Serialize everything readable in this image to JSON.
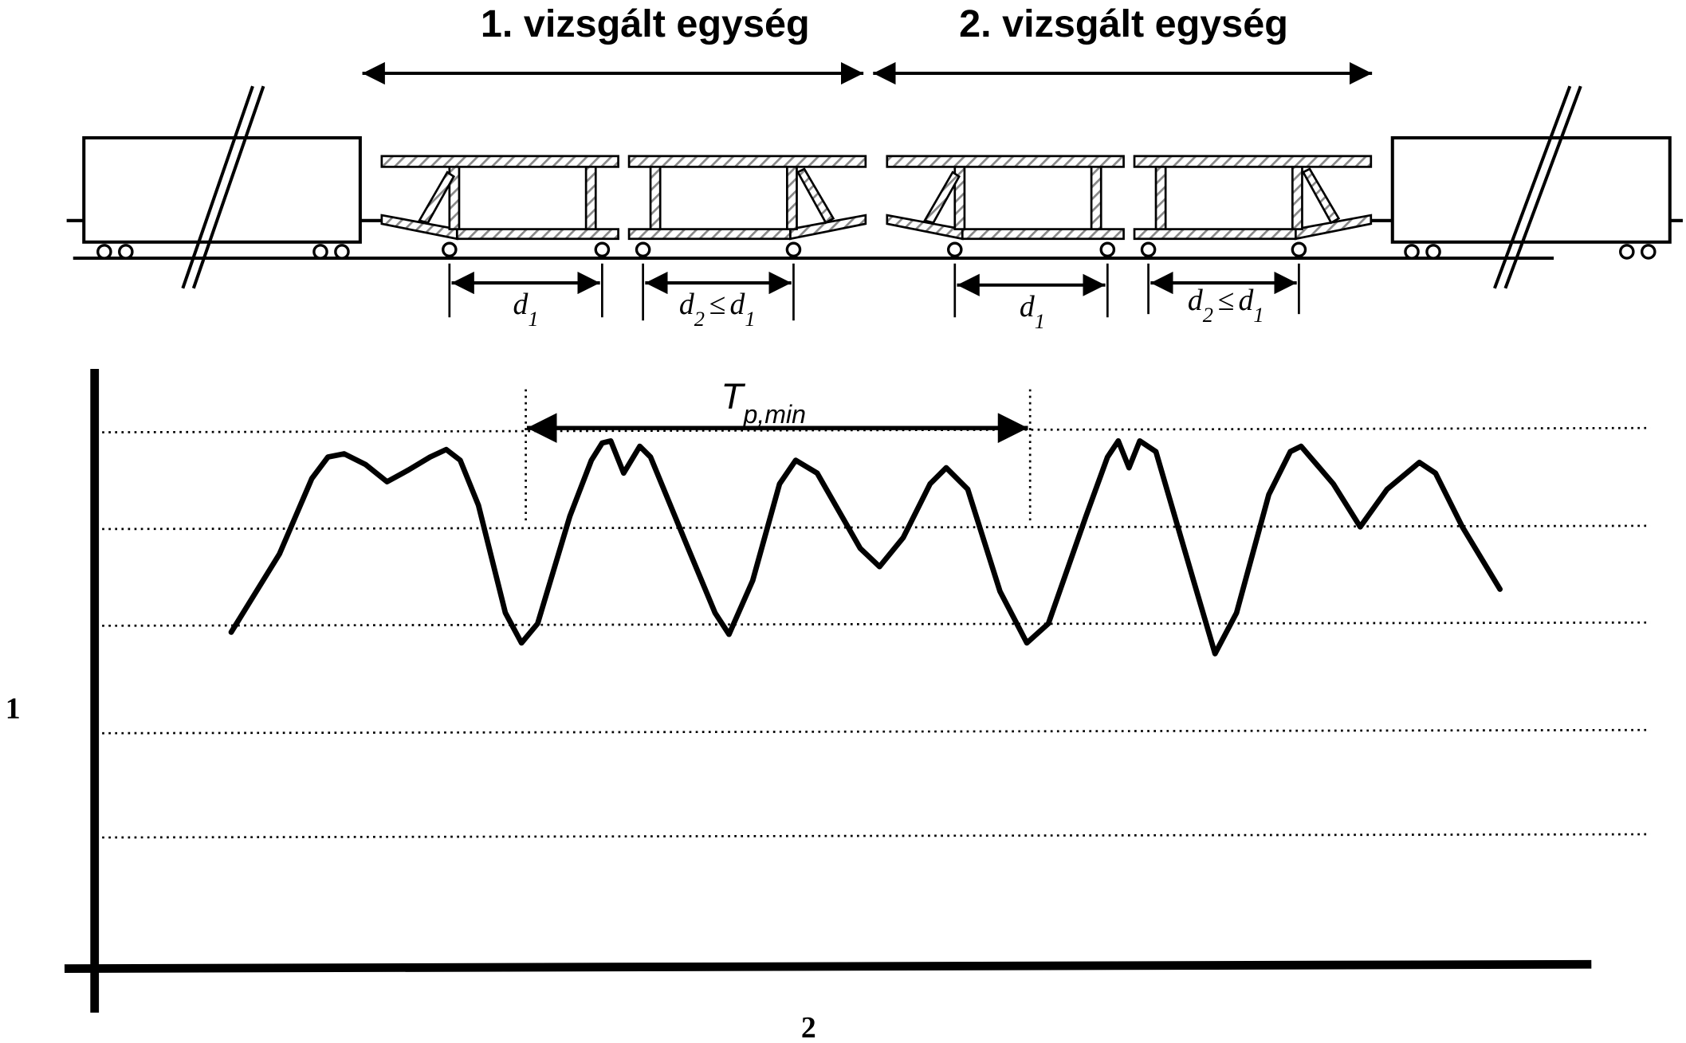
{
  "units": [
    {
      "label": "1. vizsgált egység"
    },
    {
      "label": "2. vizsgált egység"
    }
  ],
  "dimensions": [
    {
      "label": [
        {
          "text": "d"
        },
        {
          "text": "1",
          "sub": true
        }
      ]
    },
    {
      "label": [
        {
          "text": "d"
        },
        {
          "text": "2",
          "sub": true
        },
        {
          "text": "≤"
        },
        {
          "text": "d"
        },
        {
          "text": "1",
          "sub": true
        }
      ]
    },
    {
      "label": [
        {
          "text": "d"
        },
        {
          "text": "1",
          "sub": true
        }
      ]
    },
    {
      "label": [
        {
          "text": "d"
        },
        {
          "text": "2",
          "sub": true
        },
        {
          "text": "≤"
        },
        {
          "text": "d"
        },
        {
          "text": "1",
          "sub": true
        }
      ]
    }
  ],
  "period": [
    {
      "text": "T"
    },
    {
      "text": "p,min",
      "sub": true
    }
  ],
  "y_axis_label": "1",
  "x_axis_label": "2"
}
